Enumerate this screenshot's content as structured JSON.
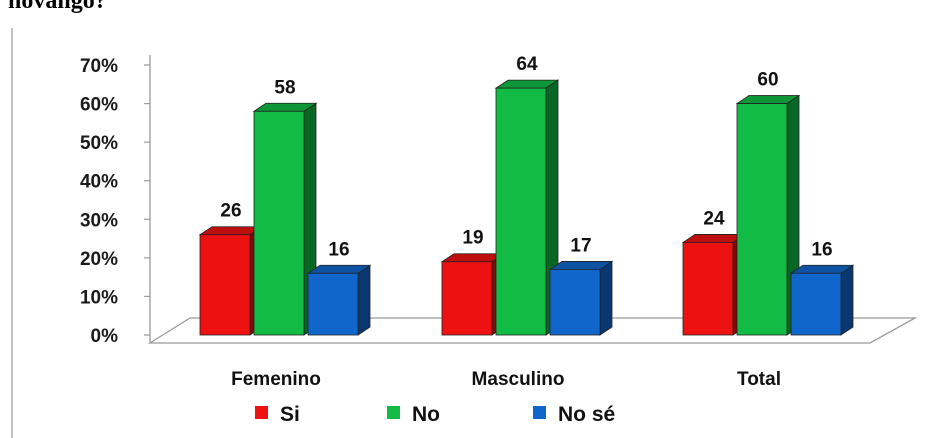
{
  "caption": "hovango?",
  "chart_data": {
    "type": "bar",
    "title": "",
    "xlabel": "",
    "ylabel": "",
    "ylim": [
      0,
      70
    ],
    "y_ticks": [
      "0%",
      "10%",
      "20%",
      "30%",
      "40%",
      "50%",
      "60%",
      "70%"
    ],
    "y_tick_values": [
      0,
      10,
      20,
      30,
      40,
      50,
      60,
      70
    ],
    "categories": [
      "Femenino",
      "Masculino",
      "Total"
    ],
    "series": [
      {
        "name": "Si",
        "values": [
          26,
          19,
          24
        ],
        "color": "#ee1111"
      },
      {
        "name": "No",
        "values": [
          58,
          64,
          60
        ],
        "color": "#11bb44"
      },
      {
        "name": "No sé",
        "values": [
          16,
          17,
          16
        ],
        "color": "#1166cc"
      }
    ],
    "legend_position": "bottom",
    "grid": false,
    "style": "3d-clustered-column"
  }
}
